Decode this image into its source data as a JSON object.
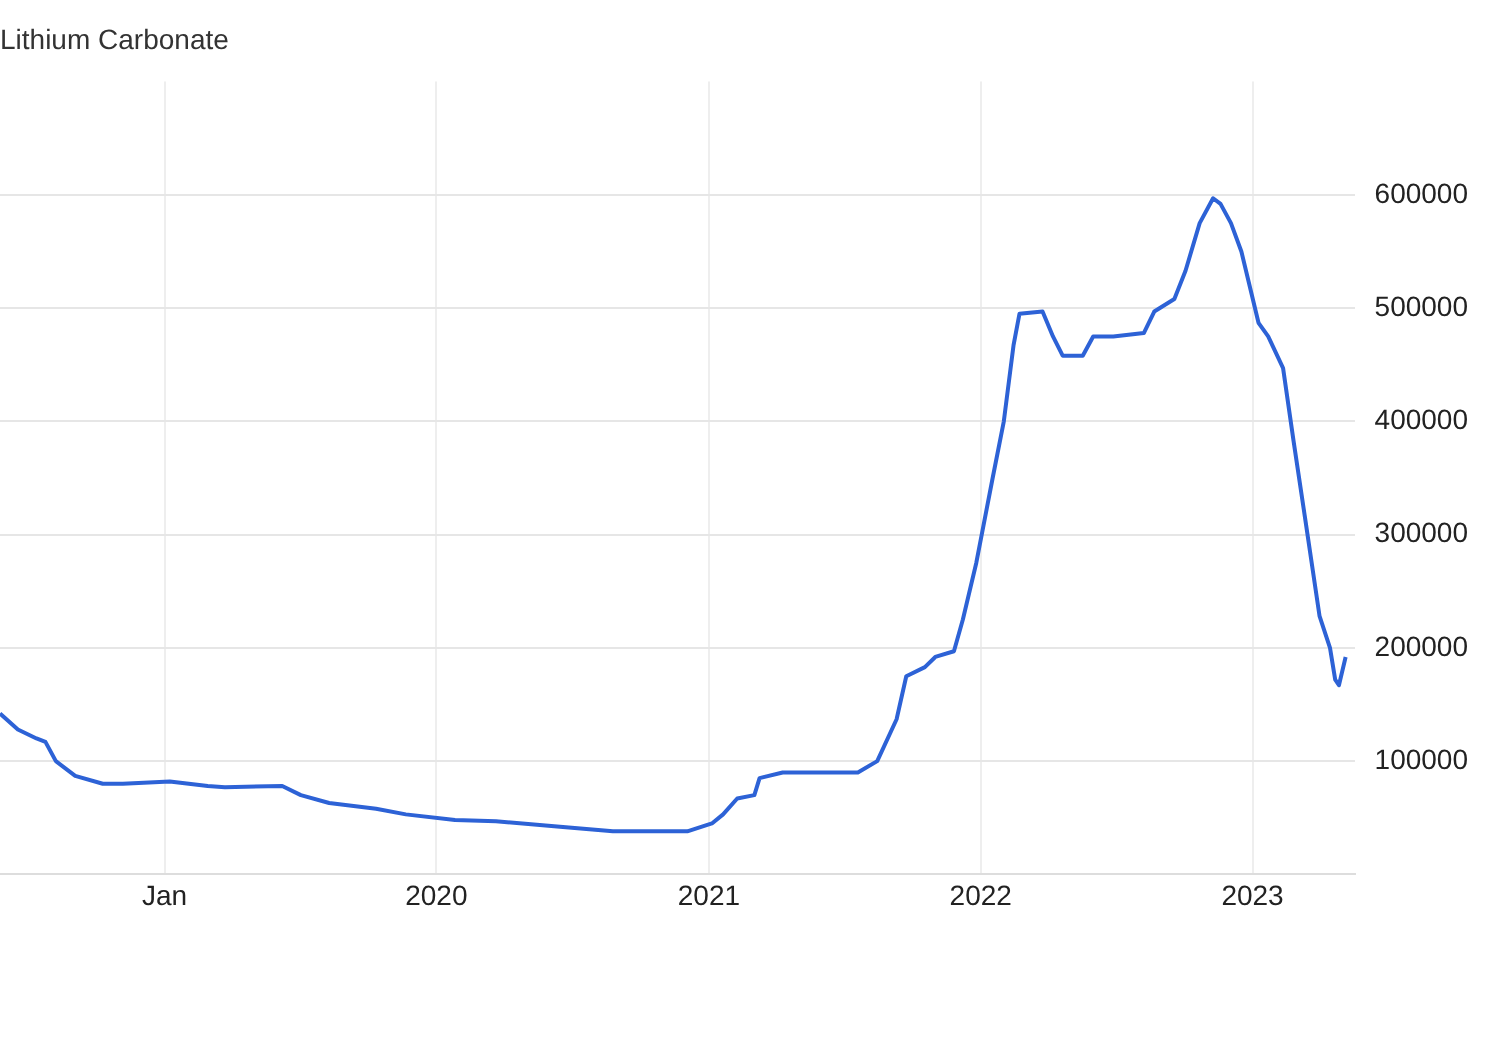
{
  "chart_data": {
    "type": "line",
    "title": "Lithium Carbonate",
    "x": [
      "2018-05-25",
      "2018-06-18",
      "2018-07-13",
      "2018-07-25",
      "2018-08-08",
      "2018-09-03",
      "2018-10-10",
      "2018-11-06",
      "2019-01-08",
      "2019-02-28",
      "2019-03-23",
      "2019-06-08",
      "2019-07-03",
      "2019-08-10",
      "2019-10-12",
      "2019-11-21",
      "2020-01-26",
      "2020-03-21",
      "2020-06-15",
      "2020-08-25",
      "2020-12-03",
      "2021-01-05",
      "2021-01-20",
      "2021-02-08",
      "2021-03-03",
      "2021-03-10",
      "2021-04-10",
      "2021-07-20",
      "2021-08-15",
      "2021-09-10",
      "2021-09-23",
      "2021-10-18",
      "2021-11-01",
      "2021-11-26",
      "2021-12-08",
      "2021-12-26",
      "2022-01-17",
      "2022-02-01",
      "2022-02-14",
      "2022-02-22",
      "2022-03-25",
      "2022-04-08",
      "2022-04-21",
      "2022-05-18",
      "2022-06-01",
      "2022-06-28",
      "2022-08-08",
      "2022-08-22",
      "2022-09-18",
      "2022-10-03",
      "2022-10-22",
      "2022-11-09",
      "2022-11-19",
      "2022-12-03",
      "2022-12-17",
      "2023-01-09",
      "2023-01-22",
      "2023-02-11",
      "2023-02-25",
      "2023-03-12",
      "2023-04-01",
      "2023-04-15",
      "2023-04-22",
      "2023-04-27",
      "2023-05-06"
    ],
    "series": [
      {
        "color": "#2d62d6",
        "values": [
          142000,
          128000,
          120000,
          117000,
          100000,
          87000,
          80000,
          80000,
          82000,
          78000,
          77000,
          78000,
          70000,
          63000,
          58000,
          53000,
          48000,
          47000,
          42000,
          38000,
          38000,
          45000,
          53000,
          67000,
          70000,
          85000,
          90000,
          90000,
          100000,
          137000,
          175000,
          183000,
          192000,
          197000,
          225000,
          275000,
          350000,
          400000,
          467000,
          495000,
          497000,
          475000,
          458000,
          458000,
          475000,
          475000,
          478000,
          497000,
          508000,
          533000,
          575000,
          597000,
          592000,
          575000,
          550000,
          487000,
          475000,
          447000,
          383000,
          317000,
          228000,
          200000,
          172000,
          167000,
          192000
        ]
      }
    ],
    "xlim": [
      "2018-05-25",
      "2023-05-18"
    ],
    "xticks": [
      {
        "value": "2019",
        "label": "Jan"
      },
      "2020",
      "2021",
      "2022",
      "2023"
    ],
    "ylim": [
      0,
      700000
    ],
    "yticks": [
      100000,
      200000,
      300000,
      400000,
      500000,
      600000
    ],
    "grid": true,
    "legend": false,
    "marker": "none",
    "line_style": "solid"
  }
}
